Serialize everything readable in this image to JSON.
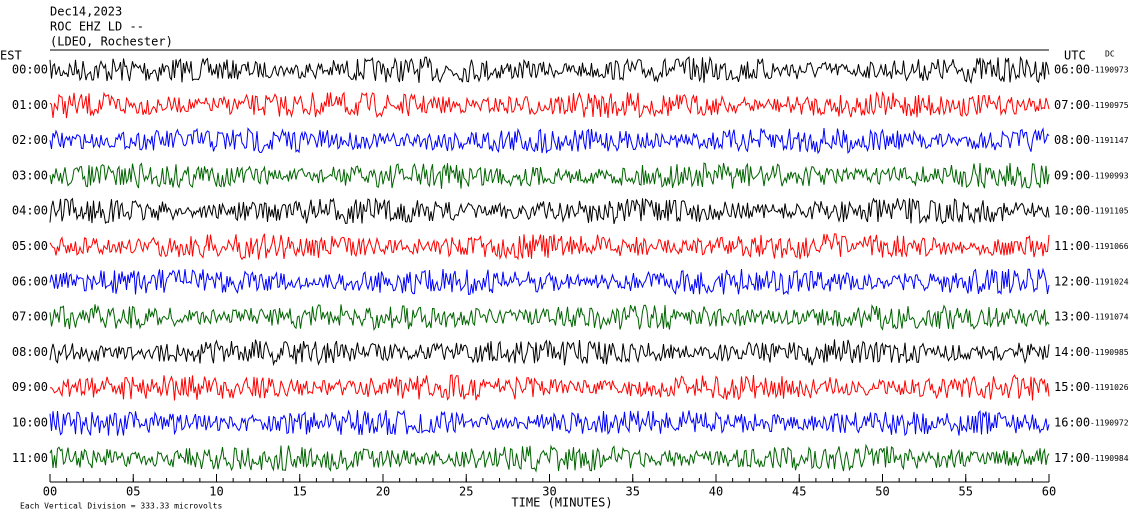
{
  "header": {
    "date": "Dec14,2023",
    "station": "ROC EHZ LD --",
    "network": "(LDEO, Rochester)"
  },
  "left_zone": "EST",
  "right_zone": "UTC",
  "dc_header": "DC",
  "rows": [
    {
      "est": "00:00",
      "utc": "06:00",
      "dc": "-1190973",
      "color": "#000000"
    },
    {
      "est": "01:00",
      "utc": "07:00",
      "dc": "-1190975",
      "color": "#ff0000"
    },
    {
      "est": "02:00",
      "utc": "08:00",
      "dc": "-1191147",
      "color": "#0000ff"
    },
    {
      "est": "03:00",
      "utc": "09:00",
      "dc": "-1190993",
      "color": "#006400"
    },
    {
      "est": "04:00",
      "utc": "10:00",
      "dc": "-1191105",
      "color": "#000000"
    },
    {
      "est": "05:00",
      "utc": "11:00",
      "dc": "-1191066",
      "color": "#ff0000"
    },
    {
      "est": "06:00",
      "utc": "12:00",
      "dc": "-1191024",
      "color": "#0000ff"
    },
    {
      "est": "07:00",
      "utc": "13:00",
      "dc": "-1191074",
      "color": "#006400"
    },
    {
      "est": "08:00",
      "utc": "14:00",
      "dc": "-1190985",
      "color": "#000000"
    },
    {
      "est": "09:00",
      "utc": "15:00",
      "dc": "-1191026",
      "color": "#ff0000"
    },
    {
      "est": "10:00",
      "utc": "16:00",
      "dc": "-1190972",
      "color": "#0000ff"
    },
    {
      "est": "11:00",
      "utc": "17:00",
      "dc": "-1190984",
      "color": "#006400"
    }
  ],
  "xlim": [
    0,
    60
  ],
  "xticks": [
    {
      "value": 0,
      "label": "00"
    },
    {
      "value": 5,
      "label": "05"
    },
    10,
    15,
    20,
    25,
    30,
    35,
    40,
    45,
    50,
    55,
    60
  ],
  "xlabel": "TIME (MINUTES)",
  "footer": "Each Vertical Division =  333.33 microvolts"
}
